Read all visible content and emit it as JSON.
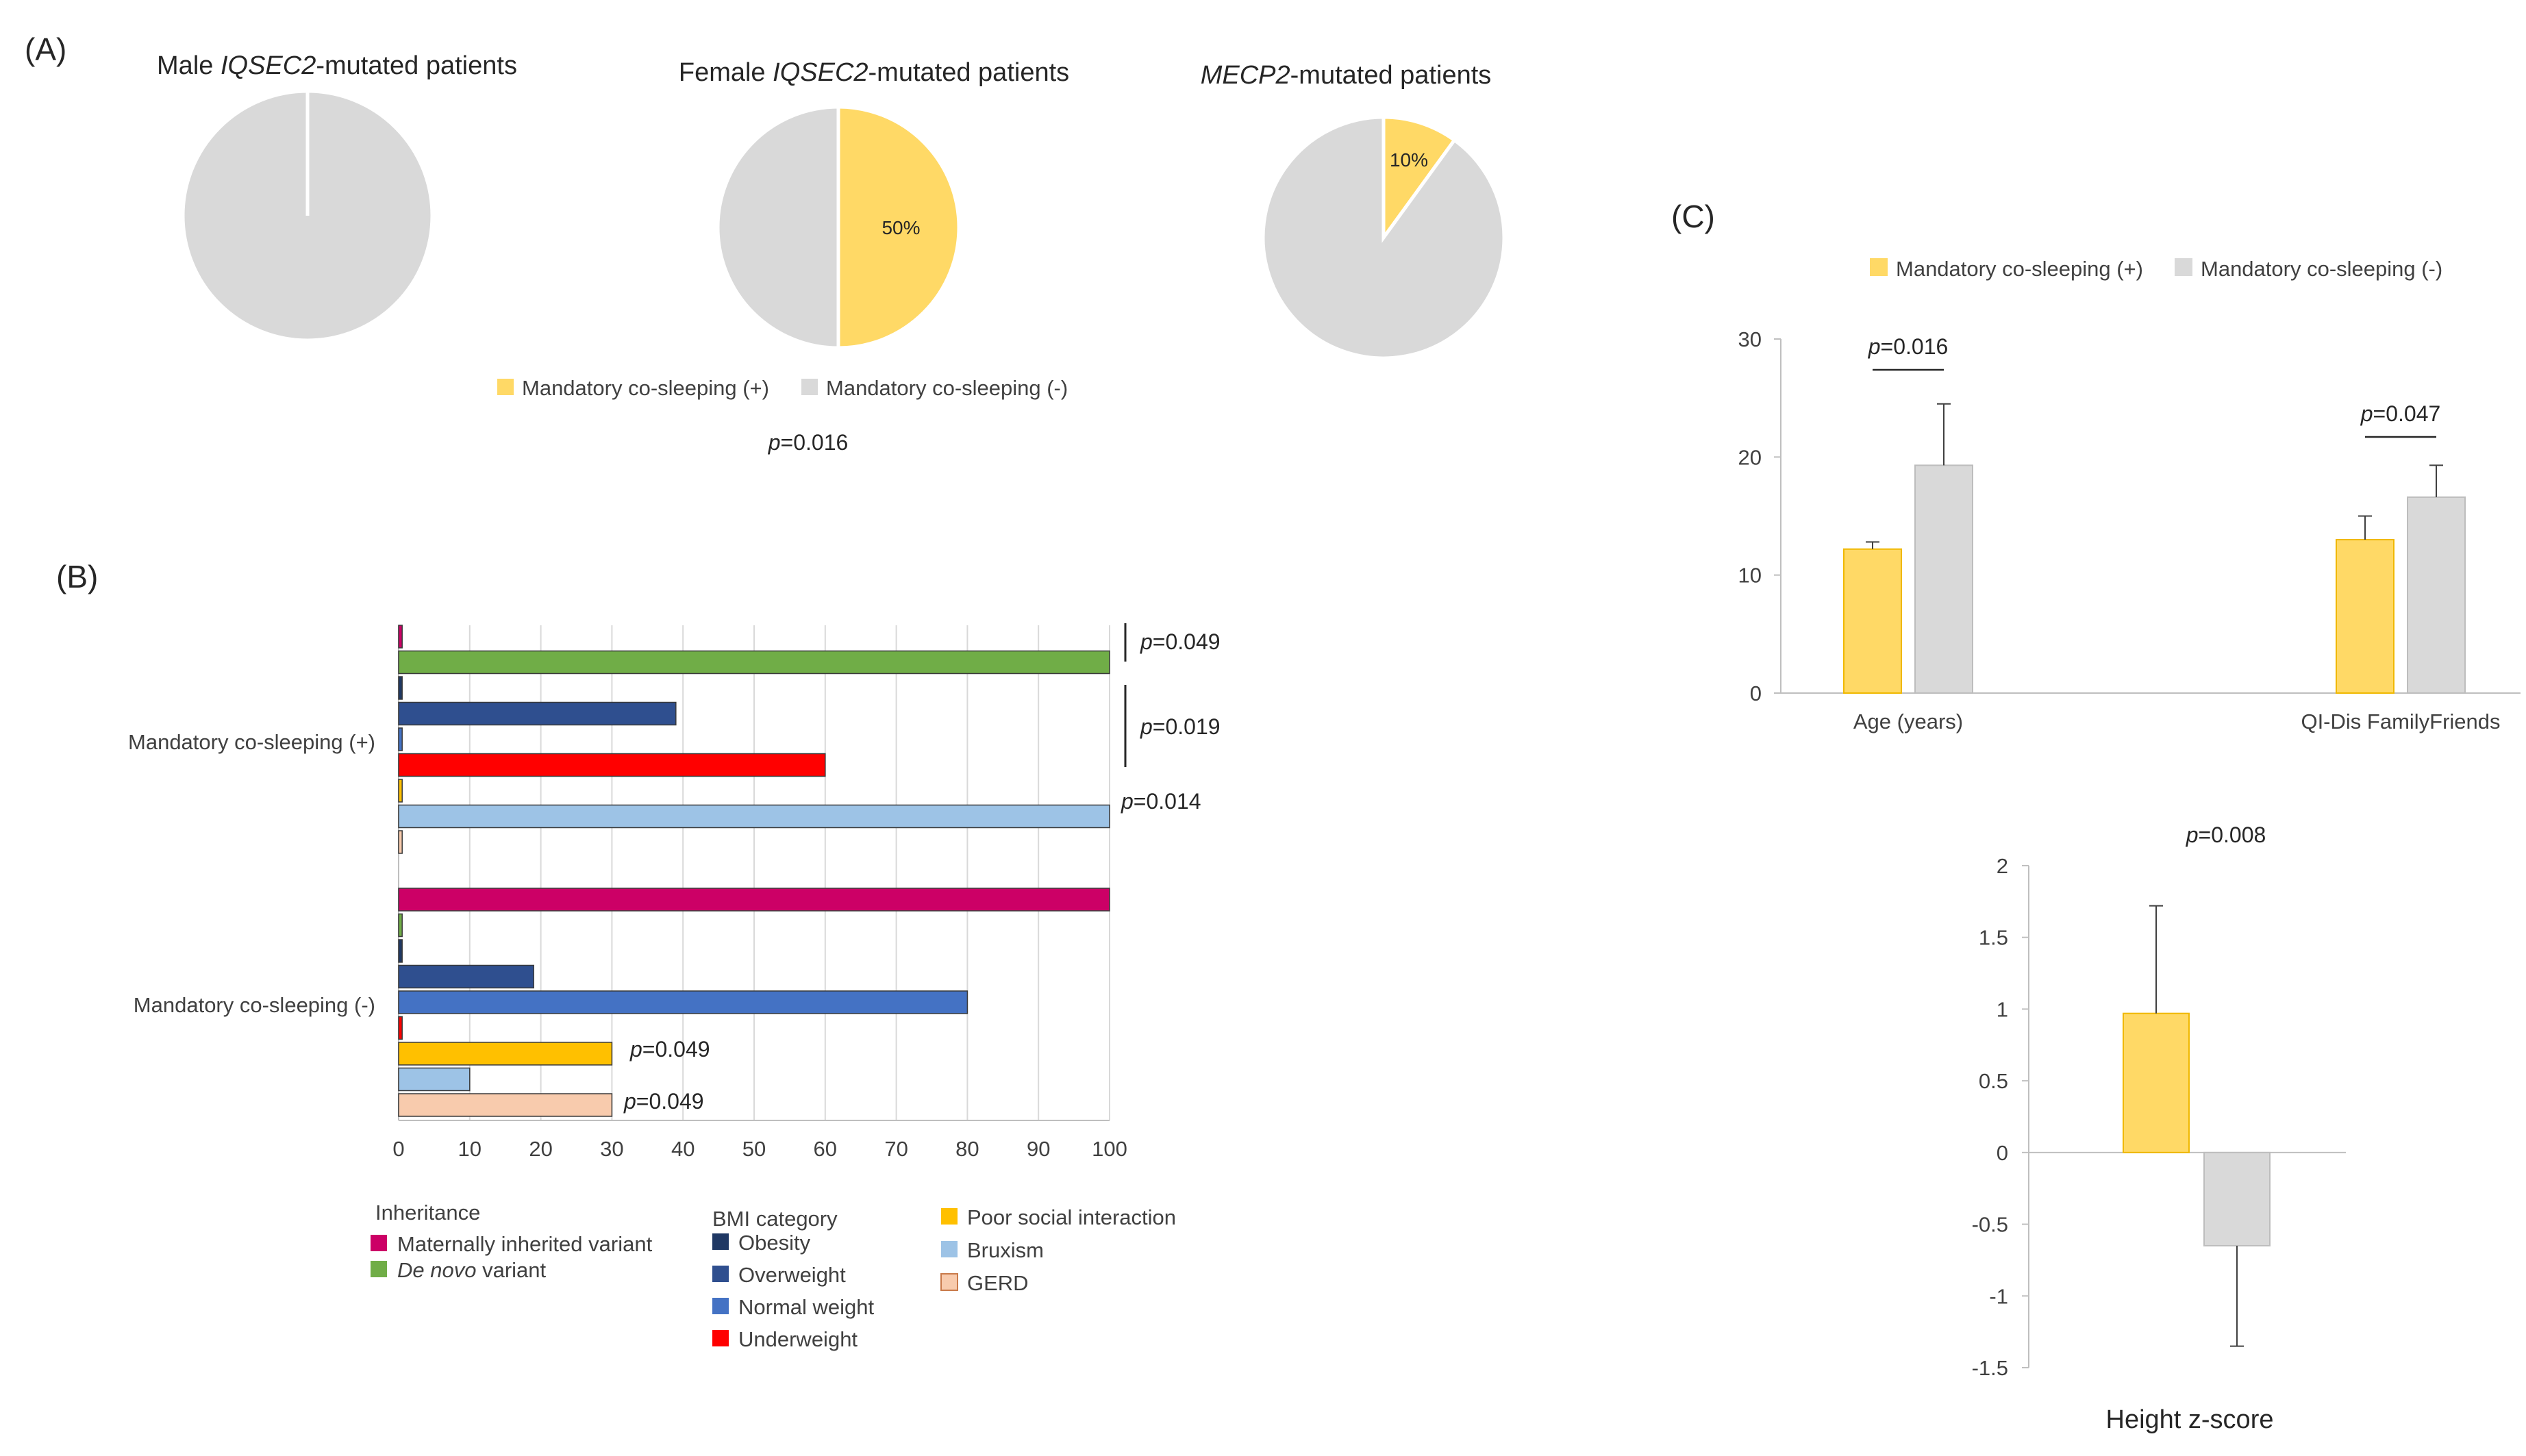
{
  "panels": {
    "a": "(A)",
    "b": "(B)",
    "c": "(C)"
  },
  "colors": {
    "cosleep_pos": "#FFD966",
    "cosleep_neg": "#D9D9D9",
    "maternal": "#CC0066",
    "de_novo": "#70AD47",
    "obesity": "#1F3864",
    "overweight": "#2F4F8F",
    "normal": "#4472C4",
    "underweight": "#FF0000",
    "poor_social": "#FFC000",
    "bruxism": "#9DC3E6",
    "gerd": "#F8CBAD"
  },
  "chart_data": [
    {
      "id": "pies",
      "type": "pie",
      "pies": [
        {
          "title_pre": "Male ",
          "title_italic": "IQSEC2",
          "title_post": "-mutated patients",
          "slices": [
            {
              "name": "Mandatory co-sleeping (+)",
              "value": 0,
              "label": ""
            },
            {
              "name": "Mandatory co-sleeping (-)",
              "value": 100,
              "label": ""
            }
          ]
        },
        {
          "title_pre": "Female ",
          "title_italic": "IQSEC2",
          "title_post": "-mutated patients",
          "slices": [
            {
              "name": "Mandatory co-sleeping (+)",
              "value": 50,
              "label": "50%"
            },
            {
              "name": "Mandatory co-sleeping (-)",
              "value": 50,
              "label": ""
            }
          ]
        },
        {
          "title_pre": "",
          "title_italic": "MECP2",
          "title_post": "-mutated patients",
          "slices": [
            {
              "name": "Mandatory co-sleeping (+)",
              "value": 10,
              "label": "10%"
            },
            {
              "name": "Mandatory co-sleeping (-)",
              "value": 90,
              "label": ""
            }
          ]
        }
      ],
      "legend": [
        "Mandatory co-sleeping (+)",
        "Mandatory co-sleeping (-)"
      ],
      "pvalue": {
        "p": "p",
        "value": "=0.016"
      }
    },
    {
      "id": "hbar",
      "type": "bar",
      "orientation": "horizontal",
      "xlim": [
        0,
        100
      ],
      "xticks": [
        0,
        10,
        20,
        30,
        40,
        50,
        60,
        70,
        80,
        90,
        100
      ],
      "groups": [
        {
          "label": "Mandatory co-sleeping (+)",
          "bars": [
            {
              "key": "maternal",
              "value": 0.5
            },
            {
              "key": "de_novo",
              "value": 100
            },
            {
              "key": "obesity",
              "value": 0.5
            },
            {
              "key": "overweight",
              "value": 39
            },
            {
              "key": "normal",
              "value": 0.5
            },
            {
              "key": "underweight",
              "value": 60
            },
            {
              "key": "poor_social",
              "value": 0.5
            },
            {
              "key": "bruxism",
              "value": 100
            },
            {
              "key": "gerd",
              "value": 0.5
            }
          ]
        },
        {
          "label": "Mandatory  co-sleeping (-)",
          "bars": [
            {
              "key": "maternal",
              "value": 100
            },
            {
              "key": "de_novo",
              "value": 0.5
            },
            {
              "key": "obesity",
              "value": 0.5
            },
            {
              "key": "overweight",
              "value": 19
            },
            {
              "key": "normal",
              "value": 80
            },
            {
              "key": "underweight",
              "value": 0.5
            },
            {
              "key": "poor_social",
              "value": 30
            },
            {
              "key": "bruxism",
              "value": 10
            },
            {
              "key": "gerd",
              "value": 30
            }
          ]
        }
      ],
      "pvalues": [
        {
          "p": "p",
          "value": "=0.049",
          "ref": "inheritance-pos"
        },
        {
          "p": "p",
          "value": "=0.019",
          "ref": "bmi-pos"
        },
        {
          "p": "p",
          "value": "=0.014",
          "ref": "bruxism-pos"
        },
        {
          "p": "p",
          "value": "=0.049",
          "ref": "poor-social-neg"
        },
        {
          "p": "p",
          "value": "=0.049",
          "ref": "gerd-neg"
        }
      ],
      "legend": {
        "inheritance": {
          "title": "Inheritance",
          "items": [
            {
              "key": "maternal",
              "label": "Maternally inherited variant"
            },
            {
              "key": "de_novo",
              "label_italic": "De novo",
              "label": " variant"
            }
          ]
        },
        "bmi": {
          "title": "BMI category",
          "items": [
            {
              "key": "obesity",
              "label": "Obesity"
            },
            {
              "key": "overweight",
              "label": "Overweight"
            },
            {
              "key": "normal",
              "label": "Normal weight"
            },
            {
              "key": "underweight",
              "label": "Underweight"
            }
          ]
        },
        "other": {
          "items": [
            {
              "key": "poor_social",
              "label": "Poor social interaction"
            },
            {
              "key": "bruxism",
              "label": "Bruxism"
            },
            {
              "key": "gerd",
              "label": "GERD"
            }
          ]
        }
      }
    },
    {
      "id": "cbar",
      "type": "bar",
      "categories": [
        "Age (years)",
        "QI-Dis FamilyFriends"
      ],
      "series": [
        {
          "name": "Mandatory co-sleeping (+)",
          "values": [
            12.2,
            13.0
          ],
          "err": [
            0.6,
            2.0
          ]
        },
        {
          "name": "Mandatory co-sleeping (-)",
          "values": [
            19.3,
            16.6
          ],
          "err": [
            5.2,
            2.7
          ]
        }
      ],
      "ylim": [
        0,
        30
      ],
      "yticks": [
        0,
        10,
        20,
        30
      ],
      "pvalues": [
        {
          "p": "p",
          "value": "=0.016"
        },
        {
          "p": "p",
          "value": "=0.047"
        }
      ]
    },
    {
      "id": "zbar",
      "type": "bar",
      "categories": [
        "Height z-score"
      ],
      "series": [
        {
          "name": "Mandatory co-sleeping (+)",
          "values": [
            0.97
          ],
          "err": [
            0.75
          ]
        },
        {
          "name": "Mandatory co-sleeping (-)",
          "values": [
            -0.65
          ],
          "err": [
            0.7
          ]
        }
      ],
      "ylim": [
        -1.5,
        2
      ],
      "yticks": [
        2,
        1.5,
        1,
        0.5,
        0,
        -0.5,
        -1,
        -1.5
      ],
      "ytick_labels": [
        "2",
        "1.5",
        "1",
        "0.5",
        "0",
        "-0.5",
        "-1",
        "-1.5"
      ],
      "xlabel": "Height z-score",
      "pvalue": {
        "p": "p",
        "value": "=0.008"
      }
    }
  ]
}
